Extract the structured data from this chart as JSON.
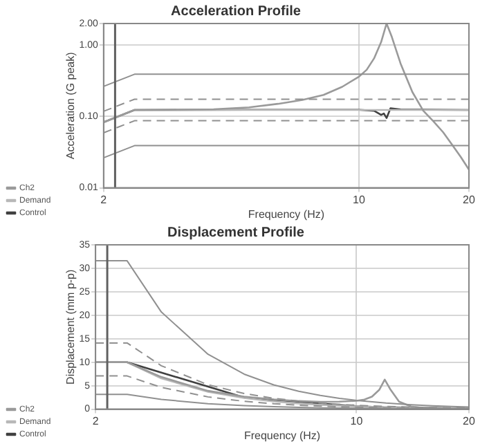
{
  "chart_data": [
    {
      "type": "line",
      "title": "Acceleration Profile",
      "xlabel": "Frequency (Hz)",
      "ylabel": "Acceleration (G peak)",
      "log": "xy",
      "grid": true,
      "legend": "left",
      "marker": "none",
      "xlim": [
        2,
        20
      ],
      "xticks": [
        2,
        10,
        20
      ],
      "ylim": [
        0.01,
        2
      ],
      "yticks": [
        {
          "value": 0.01,
          "label": "0.01"
        },
        {
          "value": 0.1,
          "label": "0.10"
        },
        {
          "value": 1,
          "label": "1.00"
        },
        {
          "value": 2,
          "label": "2.00"
        }
      ],
      "ref_lines": [
        {
          "axis": "x",
          "value": 2.15,
          "color": "#606060"
        }
      ],
      "series": [
        {
          "color": "#909090",
          "line_style": "solid",
          "x": [
            2,
            2.43,
            20
          ],
          "values": [
            0.264,
            0.39,
            0.39
          ]
        },
        {
          "color": "#909090",
          "line_style": "dashed",
          "x": [
            2,
            2.43,
            20
          ],
          "values": [
            0.118,
            0.174,
            0.174
          ]
        },
        {
          "color": "#909090",
          "line_style": "dashed",
          "x": [
            2,
            2.43,
            20
          ],
          "values": [
            0.059,
            0.087,
            0.087
          ]
        },
        {
          "color": "#909090",
          "line_style": "solid",
          "x": [
            2,
            2.43,
            20
          ],
          "values": [
            0.0264,
            0.039,
            0.039
          ]
        },
        {
          "name": "Ch2",
          "color": "#9a9a9a",
          "line_style": "solid",
          "x": [
            2,
            2.43,
            3,
            4,
            5,
            6,
            7,
            8,
            9,
            10,
            10.5,
            11,
            11.5,
            11.9,
            12.3,
            13,
            14,
            15,
            16,
            17,
            18,
            19,
            20
          ],
          "values": [
            0.083,
            0.123,
            0.124,
            0.126,
            0.134,
            0.15,
            0.17,
            0.2,
            0.26,
            0.36,
            0.45,
            0.65,
            1.1,
            2.0,
            1.3,
            0.55,
            0.22,
            0.12,
            0.085,
            0.06,
            0.04,
            0.027,
            0.018
          ]
        },
        {
          "name": "Demand",
          "color": "#b8b8b8",
          "line_style": "solid",
          "x": [
            2,
            2.43,
            20
          ],
          "values": [
            0.083,
            0.123,
            0.123
          ]
        },
        {
          "name": "Control",
          "color": "#404040",
          "line_style": "solid",
          "x": [
            2,
            2.43,
            5,
            10,
            11,
            11.5,
            11.7,
            11.9,
            12.2,
            13,
            20
          ],
          "values": [
            0.083,
            0.123,
            0.124,
            0.124,
            0.12,
            0.105,
            0.11,
            0.095,
            0.13,
            0.125,
            0.123
          ]
        }
      ]
    },
    {
      "type": "line",
      "title": "Displacement Profile",
      "xlabel": "Frequency (Hz)",
      "ylabel": "Displacement (mm p-p)",
      "log": "x",
      "grid": true,
      "legend": "left",
      "marker": "none",
      "xlim": [
        2,
        20
      ],
      "xticks": [
        2,
        10,
        20
      ],
      "ylim": [
        0,
        35
      ],
      "yticks": [
        0,
        5,
        10,
        15,
        20,
        25,
        30,
        35
      ],
      "ref_lines": [
        {
          "axis": "x",
          "value": 2.15,
          "color": "#606060"
        }
      ],
      "series": [
        {
          "color": "#909090",
          "line_style": "solid",
          "x": [
            2,
            2.43,
            3,
            4,
            5,
            6,
            7,
            8,
            9,
            10,
            12,
            14,
            16,
            18,
            20
          ],
          "values": [
            31.6,
            31.6,
            20.7,
            11.7,
            7.46,
            5.18,
            3.81,
            2.92,
            2.3,
            1.86,
            1.3,
            0.95,
            0.73,
            0.58,
            0.47
          ]
        },
        {
          "color": "#909090",
          "line_style": "dashed",
          "x": [
            2,
            2.43,
            3,
            4,
            5,
            6,
            7,
            8,
            9,
            10,
            12,
            14,
            16,
            18,
            20
          ],
          "values": [
            14.1,
            14.1,
            9.25,
            5.2,
            3.33,
            2.31,
            1.7,
            1.3,
            1.03,
            0.83,
            0.58,
            0.42,
            0.33,
            0.26,
            0.21
          ]
        },
        {
          "color": "#909090",
          "line_style": "dashed",
          "x": [
            2,
            2.43,
            3,
            4,
            5,
            6,
            7,
            8,
            9,
            10,
            12,
            14,
            16,
            18,
            20
          ],
          "values": [
            7.07,
            7.07,
            4.64,
            2.61,
            1.67,
            1.16,
            0.85,
            0.65,
            0.52,
            0.42,
            0.29,
            0.21,
            0.16,
            0.13,
            0.1
          ]
        },
        {
          "color": "#909090",
          "line_style": "solid",
          "x": [
            2,
            2.43,
            3,
            4,
            5,
            6,
            7,
            8,
            9,
            10,
            12,
            14,
            16,
            18,
            20
          ],
          "values": [
            3.16,
            3.16,
            2.07,
            1.17,
            0.75,
            0.52,
            0.38,
            0.29,
            0.23,
            0.19,
            0.13,
            0.1,
            0.07,
            0.06,
            0.05
          ]
        },
        {
          "name": "Ch2",
          "color": "#9a9a9a",
          "line_style": "solid",
          "x": [
            2,
            2.43,
            3,
            4,
            5,
            6,
            7,
            8,
            9,
            10,
            10.5,
            11,
            11.5,
            11.9,
            12.3,
            13,
            14,
            15,
            16,
            17,
            18,
            19,
            20
          ],
          "values": [
            10,
            10,
            6.85,
            3.9,
            2.67,
            2.07,
            1.72,
            1.55,
            1.6,
            1.79,
            2.03,
            2.67,
            4.1,
            6.3,
            4.3,
            1.6,
            0.56,
            0.27,
            0.17,
            0.1,
            0.06,
            0.04,
            0.02
          ]
        },
        {
          "name": "Demand",
          "color": "#b8b8b8",
          "line_style": "solid",
          "x": [
            2,
            2.43,
            3,
            4,
            5,
            6,
            7,
            8,
            9,
            10,
            12,
            14,
            16,
            18,
            20
          ],
          "values": [
            10,
            10,
            6.56,
            3.69,
            2.36,
            1.64,
            1.21,
            0.92,
            0.73,
            0.59,
            0.41,
            0.3,
            0.23,
            0.18,
            0.15
          ]
        },
        {
          "name": "Control",
          "color": "#404040",
          "line_style": "solid",
          "x": [
            2,
            2.43,
            5,
            10,
            11,
            11.5,
            11.7,
            11.9,
            12.2,
            13,
            20
          ],
          "values": [
            10,
            10,
            2.47,
            0.62,
            0.49,
            0.39,
            0.4,
            0.33,
            0.43,
            0.37,
            0.15
          ]
        }
      ]
    }
  ]
}
